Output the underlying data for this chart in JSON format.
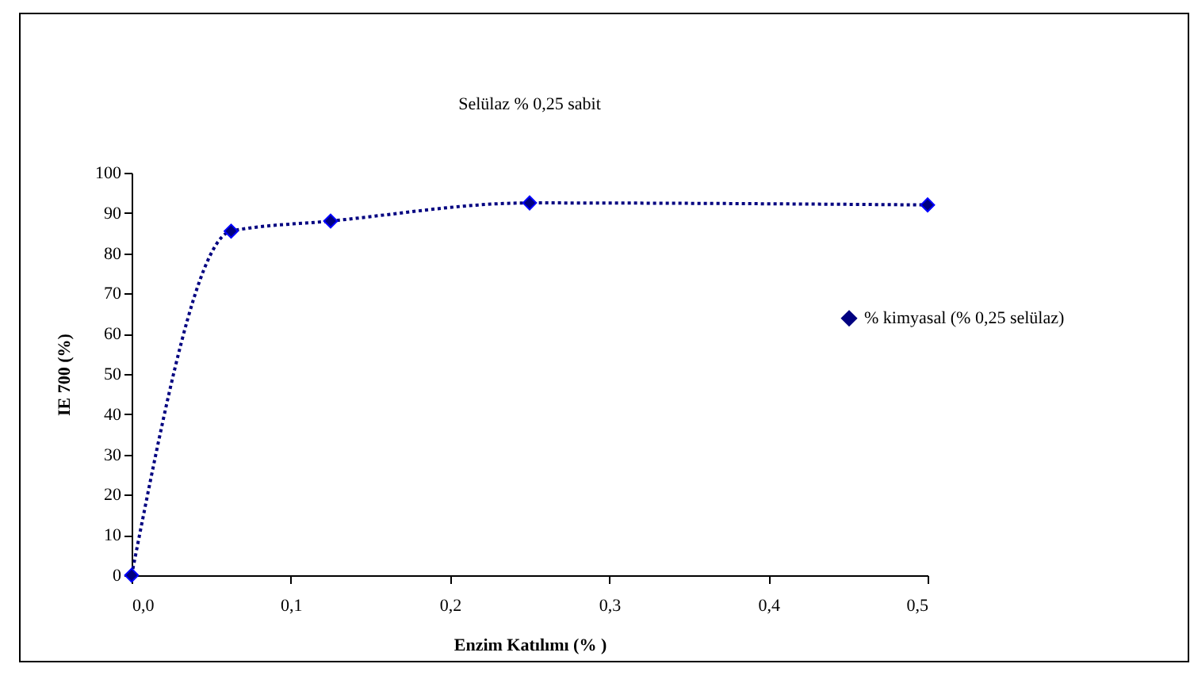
{
  "chart_data": {
    "type": "line",
    "title": "Selülaz % 0,25 sabit",
    "xlabel": "Enzim Katılımı (% )",
    "ylabel": "IE 700 (%)",
    "x": [
      0,
      0.0625,
      0.125,
      0.25,
      0.5
    ],
    "series": [
      {
        "name": "% kimyasal (% 0,25 selülaz)",
        "color": "#000080",
        "values": [
          0,
          85.5,
          88,
          92.5,
          92
        ]
      }
    ],
    "xlim": [
      0,
      0.5
    ],
    "xticks": [
      {
        "value": 0,
        "label": "0,0"
      },
      {
        "value": 0.1,
        "label": "0,1"
      },
      {
        "value": 0.2,
        "label": "0,2"
      },
      {
        "value": 0.3,
        "label": "0,3"
      },
      {
        "value": 0.4,
        "label": "0,4"
      },
      {
        "value": 0.5,
        "label": "0,5"
      }
    ],
    "ylim": [
      0,
      100
    ],
    "yticks": [
      0,
      10,
      20,
      30,
      40,
      50,
      60,
      70,
      80,
      90,
      100
    ],
    "grid": false,
    "legend": "right",
    "marker": "diamond",
    "line_style": "dotted"
  }
}
